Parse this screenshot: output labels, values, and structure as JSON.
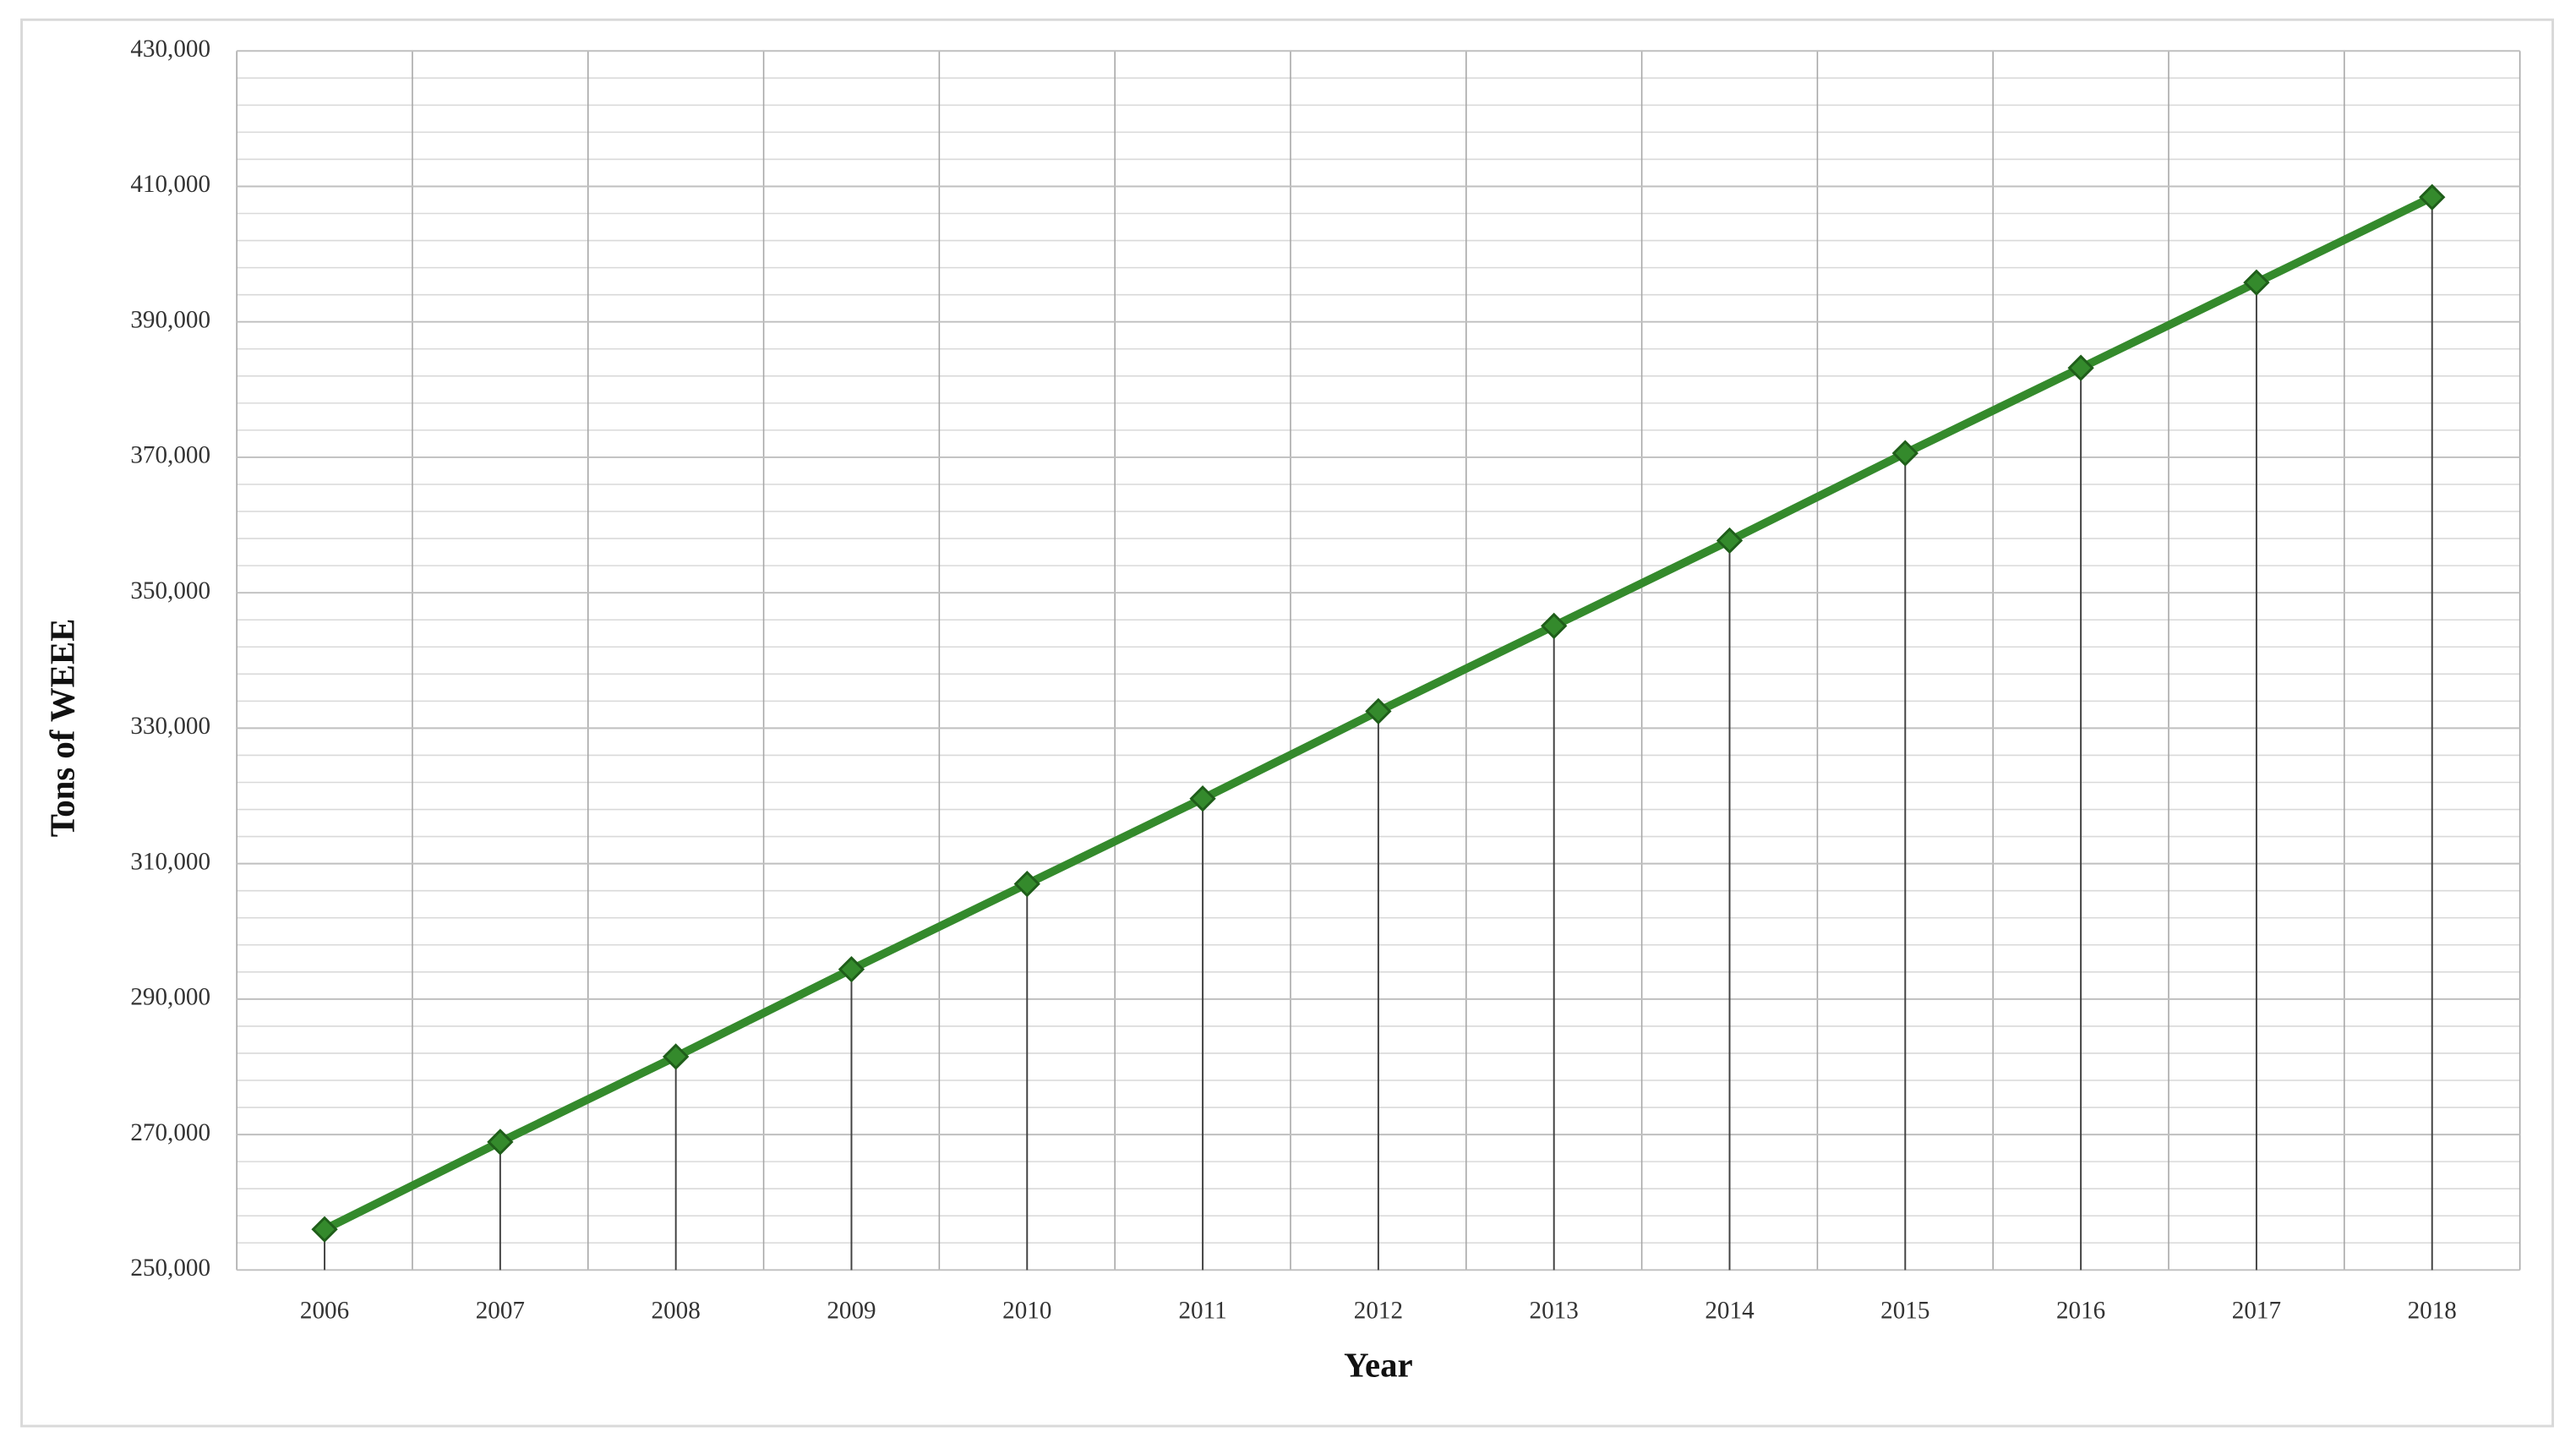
{
  "chart_data": {
    "type": "line",
    "x_label": "Year",
    "y_label": "Tons of  WEEE",
    "categories": [
      "2006",
      "2007",
      "2008",
      "2009",
      "2010",
      "2011",
      "2012",
      "2013",
      "2014",
      "2015",
      "2016",
      "2017",
      "2018"
    ],
    "series": [
      {
        "name": "Tons of WEEE",
        "color": "#348a2c",
        "values": [
          256000,
          268900,
          281500,
          294400,
          307000,
          319600,
          332500,
          345100,
          357700,
          370600,
          383200,
          395800,
          408400
        ]
      }
    ],
    "ylim": [
      250000,
      430000
    ],
    "yticks": [
      {
        "value": 250000,
        "label": "250,000"
      },
      {
        "value": 270000,
        "label": "270,000"
      },
      {
        "value": 290000,
        "label": "290,000"
      },
      {
        "value": 310000,
        "label": "310,000"
      },
      {
        "value": 330000,
        "label": "330,000"
      },
      {
        "value": 350000,
        "label": "350,000"
      },
      {
        "value": 370000,
        "label": "370,000"
      },
      {
        "value": 390000,
        "label": "390,000"
      },
      {
        "value": 410000,
        "label": "410,000"
      },
      {
        "value": 430000,
        "label": "430,000"
      }
    ],
    "y_minor_ticks": [
      254000,
      258000,
      262000,
      266000,
      274000,
      278000,
      282000,
      286000,
      294000,
      298000,
      302000,
      306000,
      314000,
      318000,
      322000,
      326000,
      334000,
      338000,
      342000,
      346000,
      354000,
      358000,
      362000,
      366000,
      374000,
      378000,
      382000,
      386000,
      394000,
      398000,
      402000,
      406000,
      414000,
      418000,
      422000,
      426000
    ],
    "grid": true,
    "drop_lines": true,
    "marker": "diamond"
  }
}
